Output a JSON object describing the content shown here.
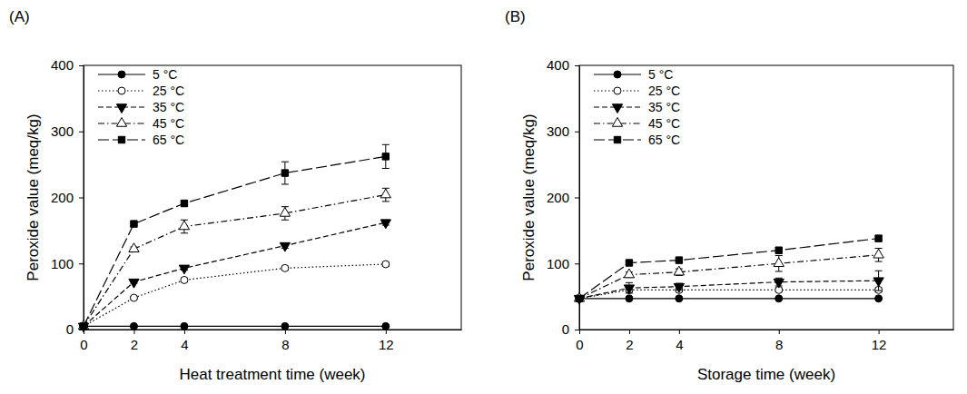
{
  "chart_data": [
    {
      "type": "line",
      "title": "(A)",
      "x_label": "Heat treatment time (week)",
      "y_label": "Peroxide value (meq/kg)",
      "xlim": [
        0,
        15
      ],
      "xticks": [
        0,
        2,
        4,
        8,
        12
      ],
      "ylim": [
        0,
        400
      ],
      "yticks": [
        0,
        100,
        200,
        300,
        400
      ],
      "legend": "top-left",
      "x": [
        0,
        2,
        4,
        8,
        12
      ],
      "series": [
        {
          "name": "5 °C",
          "color": "#000000",
          "marker": "circle-filled",
          "line_style": "solid",
          "values": [
            5,
            5,
            5,
            5,
            5
          ],
          "errors": [
            0,
            1,
            1,
            1,
            1
          ]
        },
        {
          "name": "25 °C",
          "color": "#000000",
          "marker": "circle-open",
          "line_style": "dotted",
          "values": [
            5,
            48,
            75,
            93,
            99
          ],
          "errors": [
            0,
            2,
            3,
            3,
            3
          ]
        },
        {
          "name": "35 °C",
          "color": "#000000",
          "marker": "triangle-down-filled",
          "line_style": "dashed",
          "values": [
            5,
            72,
            93,
            127,
            162
          ],
          "errors": [
            0,
            2,
            3,
            4,
            4
          ]
        },
        {
          "name": "45 °C",
          "color": "#000000",
          "marker": "triangle-up-open",
          "line_style": "dashdot",
          "values": [
            5,
            122,
            156,
            176,
            204
          ],
          "errors": [
            0,
            3,
            10,
            10,
            10
          ]
        },
        {
          "name": "65 °C",
          "color": "#000000",
          "marker": "square-filled",
          "line_style": "longdash",
          "values": [
            5,
            160,
            191,
            237,
            262
          ],
          "errors": [
            0,
            3,
            4,
            17,
            18
          ]
        }
      ]
    },
    {
      "type": "line",
      "title": "(B)",
      "x_label": "Storage time (week)",
      "y_label": "Peroxide value (meq/kg)",
      "xlim": [
        0,
        15
      ],
      "xticks": [
        0,
        2,
        4,
        8,
        12
      ],
      "ylim": [
        0,
        400
      ],
      "yticks": [
        0,
        100,
        200,
        300,
        400
      ],
      "legend": "top-left",
      "x": [
        0,
        2,
        4,
        8,
        12
      ],
      "series": [
        {
          "name": "5 °C",
          "color": "#000000",
          "marker": "circle-filled",
          "line_style": "solid",
          "values": [
            47,
            47,
            47,
            47,
            47
          ],
          "errors": [
            0,
            1,
            1,
            1,
            1
          ]
        },
        {
          "name": "25 °C",
          "color": "#000000",
          "marker": "circle-open",
          "line_style": "dotted",
          "values": [
            47,
            60,
            60,
            60,
            60
          ],
          "errors": [
            0,
            3,
            3,
            3,
            3
          ]
        },
        {
          "name": "35 °C",
          "color": "#000000",
          "marker": "triangle-down-filled",
          "line_style": "dashed",
          "values": [
            47,
            63,
            65,
            72,
            74
          ],
          "errors": [
            0,
            8,
            5,
            6,
            15
          ]
        },
        {
          "name": "45 °C",
          "color": "#000000",
          "marker": "triangle-up-open",
          "line_style": "dashdot",
          "values": [
            47,
            83,
            87,
            100,
            113
          ],
          "errors": [
            0,
            4,
            5,
            12,
            10
          ]
        },
        {
          "name": "65 °C",
          "color": "#000000",
          "marker": "square-filled",
          "line_style": "longdash",
          "values": [
            47,
            101,
            105,
            120,
            138
          ],
          "errors": [
            0,
            3,
            3,
            4,
            4
          ]
        }
      ]
    }
  ]
}
